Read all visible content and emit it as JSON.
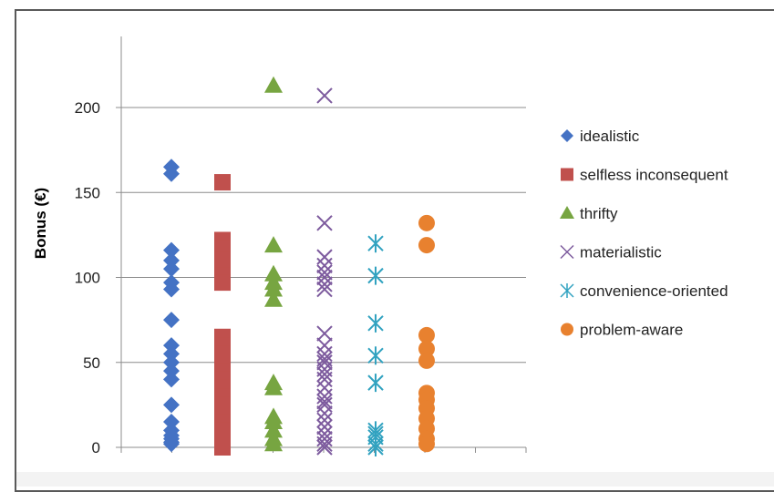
{
  "chart_data": {
    "type": "scatter",
    "ylabel": "Bonus (€)",
    "xlabel": "",
    "title": "",
    "ylim": [
      0,
      235
    ],
    "yticks": [
      0,
      50,
      100,
      150,
      200
    ],
    "grid": true,
    "legend_position": "right",
    "series": [
      {
        "name": "idealistic",
        "marker": "diamond",
        "color": "#4472c4",
        "x": 1,
        "values": [
          165,
          161,
          116,
          110,
          105,
          97,
          93,
          75,
          60,
          55,
          50,
          45,
          40,
          25,
          15,
          10,
          7,
          5,
          3,
          2
        ]
      },
      {
        "name": "selfless inconsequent",
        "marker": "square",
        "color": "#c0504d",
        "x": 2,
        "values": [
          156,
          122,
          117,
          110,
          101,
          97,
          65,
          60,
          55,
          50,
          45,
          40,
          35,
          30,
          25,
          20,
          15,
          10,
          5,
          2,
          0
        ]
      },
      {
        "name": "thrifty",
        "marker": "triangle",
        "color": "#77a541",
        "x": 3,
        "values": [
          213,
          119,
          102,
          97,
          93,
          87,
          38,
          35,
          18,
          15,
          10,
          5,
          2
        ]
      },
      {
        "name": "materialistic",
        "marker": "x",
        "color": "#7d5b9e",
        "x": 4,
        "values": [
          207,
          132,
          112,
          107,
          103,
          100,
          96,
          93,
          67,
          60,
          55,
          52,
          50,
          46,
          43,
          40,
          35,
          30,
          27,
          25,
          20,
          16,
          12,
          8,
          5,
          2,
          0
        ]
      },
      {
        "name": "convenience-oriented",
        "marker": "asterisk",
        "color": "#31a2c0",
        "x": 5,
        "values": [
          120,
          101,
          73,
          54,
          38,
          10,
          8,
          6,
          2,
          0
        ]
      },
      {
        "name": "problem-aware",
        "marker": "circle",
        "color": "#e8812f",
        "x": 6,
        "values": [
          132,
          119,
          66,
          58,
          51,
          32,
          28,
          23,
          17,
          11,
          5,
          2
        ]
      }
    ]
  }
}
